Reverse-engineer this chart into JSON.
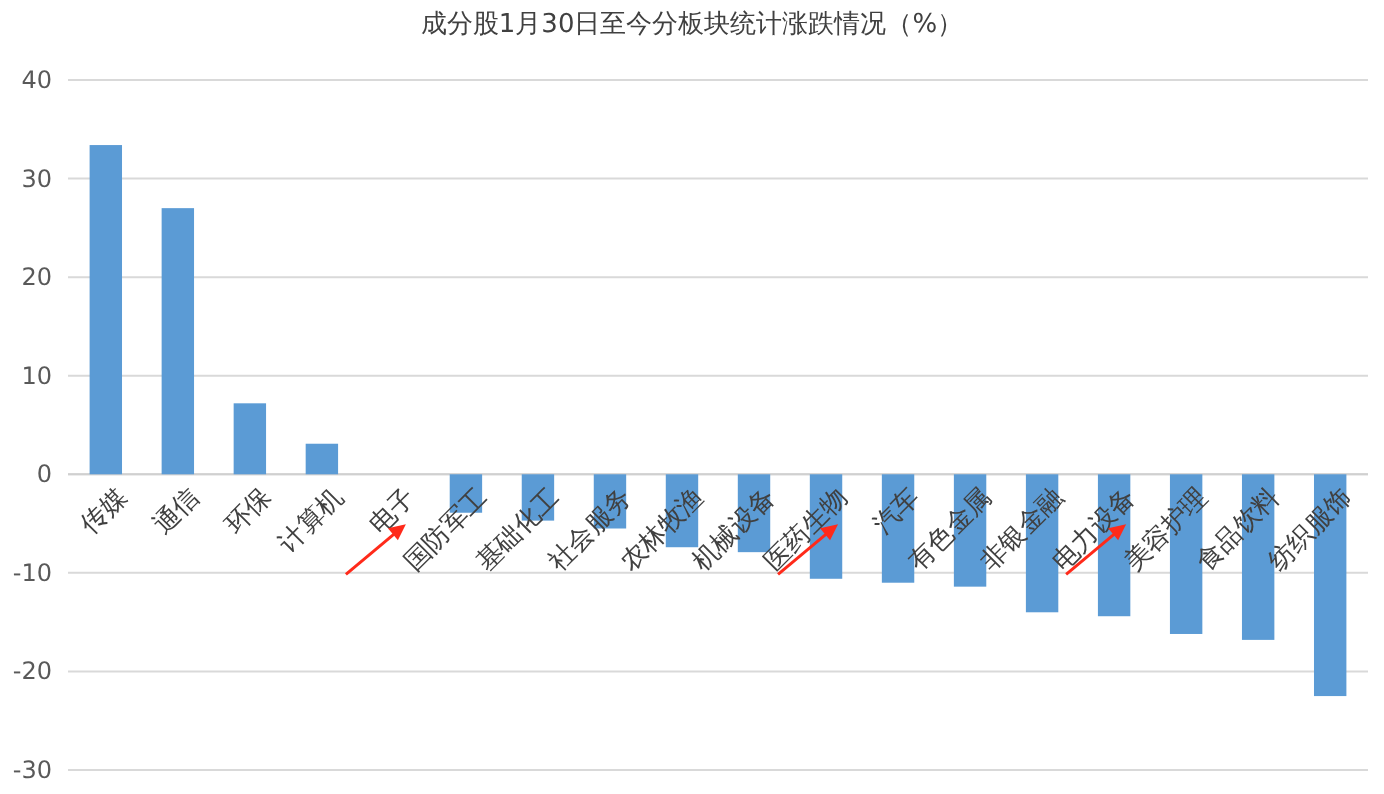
{
  "chart_data": {
    "type": "bar",
    "title": "成分股1月30日至今分板块统计涨跌情况（%）",
    "categories": [
      "传媒",
      "通信",
      "环保",
      "计算机",
      "电子",
      "国防军工",
      "基础化工",
      "社会服务",
      "农林牧渔",
      "机械设备",
      "医药生物",
      "汽车",
      "有色金属",
      "非银金融",
      "电力设备",
      "美容护理",
      "食品饮料",
      "纺织服饰"
    ],
    "values": [
      33.4,
      27.0,
      7.2,
      3.1,
      0,
      -3.9,
      -4.7,
      -5.5,
      -7.4,
      -7.9,
      -10.6,
      -11.0,
      -11.4,
      -14.0,
      -14.4,
      -16.2,
      -16.8,
      -22.5
    ],
    "color": "#5b9bd5",
    "ylim": [
      -30,
      40
    ],
    "yticks": [
      -30,
      -20,
      -10,
      0,
      10,
      20,
      30,
      40
    ],
    "grid": "y"
  }
}
